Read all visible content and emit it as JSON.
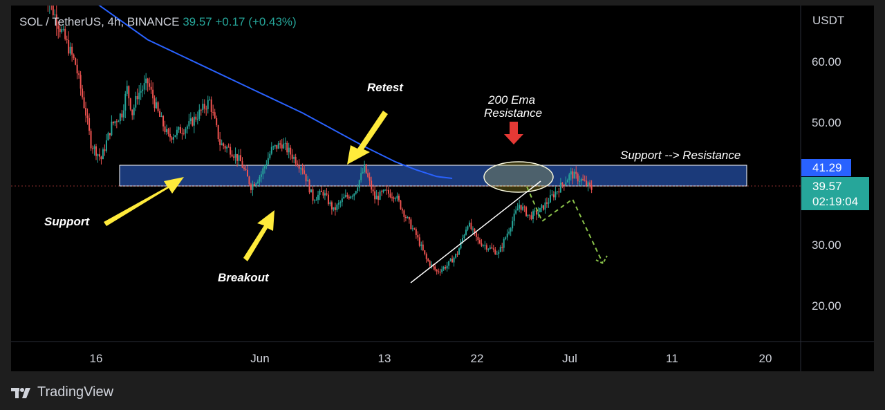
{
  "header": {
    "symbol": "SOL / TetherUS, 4h, BINANCE",
    "last": "39.57",
    "change": "+0.17 (+0.43%)"
  },
  "axis": {
    "unit": "USDT",
    "y_ticks": [
      "60.00",
      "50.00",
      "30.00",
      "20.00"
    ],
    "x_ticks": [
      "16",
      "Jun",
      "13",
      "22",
      "Jul",
      "11",
      "20"
    ]
  },
  "badges": {
    "ema_value": "41.29",
    "last_price": "39.57",
    "countdown": "02:19:04"
  },
  "annotations": {
    "retest": "Retest",
    "ema_resistance_line1": "200 Ema",
    "ema_resistance_line2": "Resistance",
    "support_resistance": "Support --> Resistance",
    "support": "Support",
    "breakout": "Breakout"
  },
  "watermark": {
    "text": "TradingView",
    "icon": "tradingview-logo-icon"
  },
  "colors": {
    "bull": "#26a69a",
    "bear": "#ef5350",
    "ema": "#2962ff",
    "zone": "#1b3a7a",
    "arrow": "#ffeb3b",
    "projection": "#8bc34a",
    "price_badge": "#26a69a"
  },
  "chart_data": {
    "type": "candlestick",
    "y_unit": "USDT",
    "y_ticks": [
      60,
      50,
      30,
      20
    ],
    "x_ticks": [
      "16",
      "Jun",
      "13",
      "22",
      "Jul",
      "11",
      "20"
    ],
    "last_price": 39.57,
    "ema_200_last": 41.29,
    "ema_200": [
      [
        -6,
        79
      ],
      [
        0,
        70
      ],
      [
        5,
        64
      ],
      [
        10,
        60
      ],
      [
        15,
        56
      ],
      [
        20,
        52
      ],
      [
        26,
        46.5
      ],
      [
        29,
        44
      ],
      [
        31,
        42.7
      ],
      [
        33,
        41.6
      ],
      [
        34.5,
        41.29
      ]
    ],
    "support_resistance_zone": [
      38,
      41.5
    ],
    "price_path": [
      [
        -5,
        72
      ],
      [
        -4,
        68
      ],
      [
        -2,
        60
      ],
      [
        -1,
        52
      ],
      [
        -0.5,
        47
      ],
      [
        0.5,
        44.5
      ],
      [
        1.5,
        50
      ],
      [
        2.5,
        52
      ],
      [
        3,
        56
      ],
      [
        3.5,
        52
      ],
      [
        4,
        55
      ],
      [
        5,
        57
      ],
      [
        6,
        52
      ],
      [
        7,
        48
      ],
      [
        8,
        49
      ],
      [
        9,
        50
      ],
      [
        10,
        52
      ],
      [
        11,
        54
      ],
      [
        12,
        47
      ],
      [
        13,
        46
      ],
      [
        14,
        44
      ],
      [
        15,
        40
      ],
      [
        16,
        42
      ],
      [
        17,
        46
      ],
      [
        18,
        47
      ],
      [
        19,
        45
      ],
      [
        20,
        43
      ],
      [
        21,
        38
      ],
      [
        22,
        39
      ],
      [
        23,
        36
      ],
      [
        24,
        38
      ],
      [
        25,
        39
      ],
      [
        26,
        43
      ],
      [
        27,
        38
      ],
      [
        28,
        39
      ],
      [
        29,
        38.5
      ],
      [
        30,
        35
      ],
      [
        31,
        32
      ],
      [
        32,
        28
      ],
      [
        33,
        26
      ],
      [
        34,
        27
      ],
      [
        35,
        29
      ],
      [
        36,
        34
      ],
      [
        37,
        31
      ],
      [
        38,
        30
      ],
      [
        39,
        29
      ],
      [
        40,
        33
      ],
      [
        41,
        37
      ],
      [
        42,
        35
      ],
      [
        43,
        36
      ],
      [
        44,
        38
      ],
      [
        45,
        40
      ],
      [
        46,
        42
      ],
      [
        47,
        41
      ],
      [
        48,
        39.57
      ]
    ],
    "trendline": [
      [
        21.5,
        24
      ],
      [
        25.4,
        39
      ]
    ],
    "projection": [
      [
        25.3,
        39
      ],
      [
        26.2,
        34
      ],
      [
        27.8,
        37.2
      ],
      [
        29.1,
        27
      ]
    ]
  }
}
